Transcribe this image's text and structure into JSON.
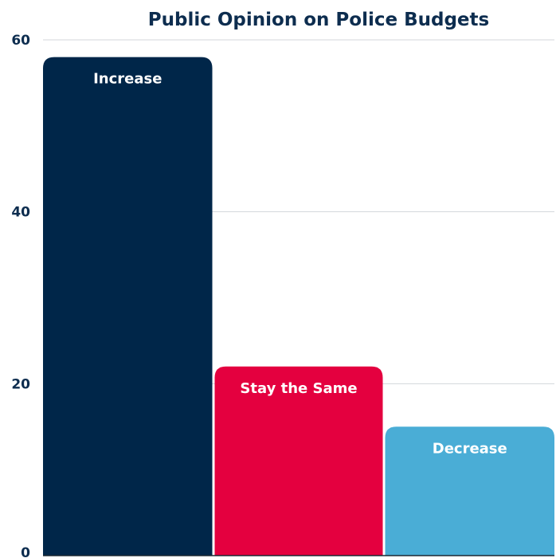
{
  "chart_data": {
    "type": "bar",
    "title": "Public Opinion on Police Budgets",
    "xlabel": "",
    "ylabel": "",
    "categories": [
      "Increase",
      "Stay the Same",
      "Decrease"
    ],
    "values": [
      58,
      22,
      15
    ],
    "ylim": [
      0,
      60
    ],
    "yticks": [
      0,
      20,
      40,
      60
    ],
    "grid": true,
    "legend": "none",
    "colors": [
      "#002649",
      "#e4003f",
      "#4aadd6"
    ],
    "title_color": "#0d2d4f",
    "tick_color": "#0d2d4f",
    "label_color": "#ffffff",
    "grid_color": "#d3d7db",
    "axis_color": "#1c2833"
  }
}
